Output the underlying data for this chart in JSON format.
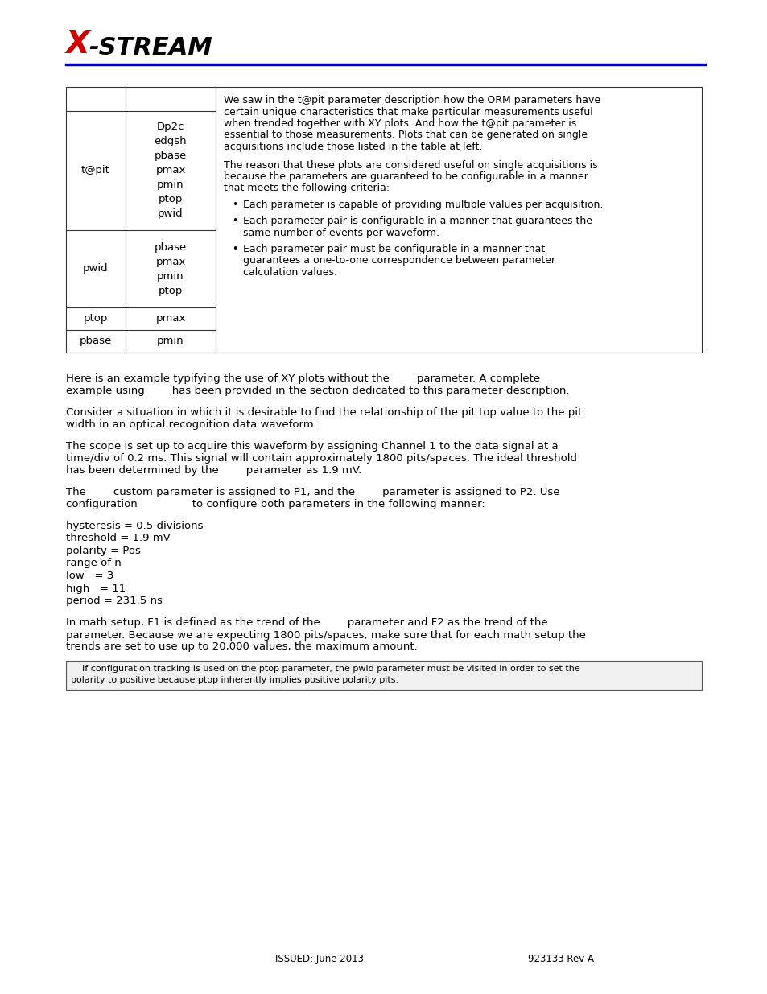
{
  "page_bg": "#ffffff",
  "logo_x_color": "#cc0000",
  "logo_stream_color": "#000000",
  "header_line_color": "#0000cc",
  "table_col1": [
    "",
    "t@pit",
    "pwid",
    "ptop",
    "pbase"
  ],
  "table_col2": [
    "",
    "Dp2c\nedgsh\npbase\npmax\npmin\nptop\npwid",
    "pbase\npmax\npmin\nptop",
    "pmax",
    "pmin"
  ],
  "right_para1": "We saw in the t@pit parameter description how the ORM parameters have certain unique characteristics that make particular measurements useful when trended together with XY plots. And how the t@pit parameter is essential to those measurements. Plots that can be generated on single acquisitions include those listed in the table at left.",
  "right_para2": "The reason that these plots are considered useful on single acquisitions is because the parameters are guaranteed to be configurable in a manner that meets the following criteria:",
  "bullets": [
    "Each parameter is capable of providing multiple values per acquisition.",
    "Each parameter pair is configurable in a manner that guarantees the same number of events per waveform.",
    "Each parameter pair must be configurable in a manner that guarantees a one-to-one correspondence between parameter calculation values."
  ],
  "body_para1_line1": "Here is an example typifying the use of XY plots without the        parameter. A complete",
  "body_para1_line2": "example using        has been provided in the section dedicated to this parameter description.",
  "body_para2_line1": "Consider a situation in which it is desirable to find the relationship of the pit top value to the pit",
  "body_para2_line2": "width in an optical recognition data waveform:",
  "body_para3_line1": "The scope is set up to acquire this waveform by assigning Channel 1 to the data signal at a",
  "body_para3_line2": "time/div of 0.2 ms. This signal will contain approximately 1800 pits/spaces. The ideal threshold",
  "body_para3_line3": "has been determined by the        parameter as 1.9 mV.",
  "body_para4_line1": "The        custom parameter is assigned to P1, and the        parameter is assigned to P2. Use",
  "body_para4_line2": "configuration                to configure both parameters in the following manner:",
  "code_lines": [
    "hysteresis = 0.5 divisions",
    "threshold = 1.9 mV",
    "polarity = Pos",
    "range of n",
    "low   = 3",
    "high   = 11",
    "period = 231.5 ns"
  ],
  "final_para_line1": "In math setup, F1 is defined as the trend of the        parameter and F2 as the trend of the",
  "final_para_line2": "parameter. Because we are expecting 1800 pits/spaces, make sure that for each math setup the",
  "final_para_line3": "trends are set to use up to 20,000 values, the maximum amount.",
  "note_line1": "    If configuration tracking is used on the ptop parameter, the pwid parameter must be visited in order to set the",
  "note_line2": "polarity to positive because ptop inherently implies positive polarity pits.",
  "footer_left": "ISSUED: June 2013",
  "footer_right": "923133 Rev A"
}
